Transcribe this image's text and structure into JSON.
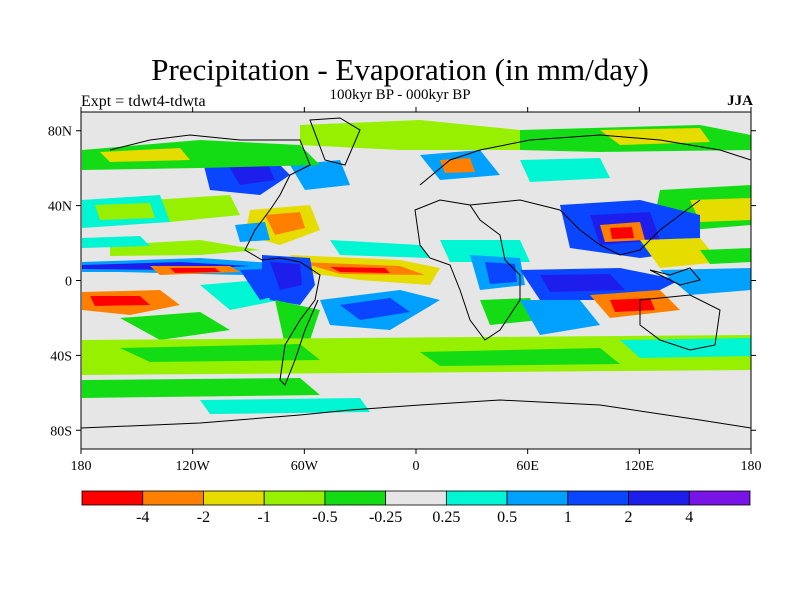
{
  "title": "Precipitation - Evaporation (in mm/day)",
  "subtitle": "100kyr BP - 000kyr BP",
  "left_label": "Expt = tdwt4-tdwta",
  "right_label": "JJA",
  "map": {
    "projection": "cylindrical-equidistant",
    "lon_range": [
      -180,
      180
    ],
    "lat_range": [
      -90,
      90
    ],
    "background_color": "#e6e6e6",
    "coastline_color": "#000000",
    "lat_ticks": [
      {
        "value": 80,
        "label": "80N"
      },
      {
        "value": 40,
        "label": "40N"
      },
      {
        "value": 0,
        "label": "0"
      },
      {
        "value": -40,
        "label": "40S"
      },
      {
        "value": -80,
        "label": "80S"
      }
    ],
    "lon_ticks": [
      {
        "value": -180,
        "label": "180"
      },
      {
        "value": -120,
        "label": "120W"
      },
      {
        "value": -60,
        "label": "60W"
      },
      {
        "value": 0,
        "label": "0"
      },
      {
        "value": 60,
        "label": "60E"
      },
      {
        "value": 120,
        "label": "120E"
      },
      {
        "value": 180,
        "label": "180"
      }
    ]
  },
  "colorbar": {
    "colors": [
      "#ff0000",
      "#ff8000",
      "#e6dc00",
      "#96f000",
      "#14dc14",
      "#e6e6e6",
      "#00f5d2",
      "#00a0ff",
      "#0a46ff",
      "#1e1eec",
      "#7814e6"
    ],
    "labels": [
      "-4",
      "-2",
      "-1",
      "-0.5",
      "-0.25",
      "0.25",
      "0.5",
      "1",
      "2",
      "4"
    ]
  }
}
